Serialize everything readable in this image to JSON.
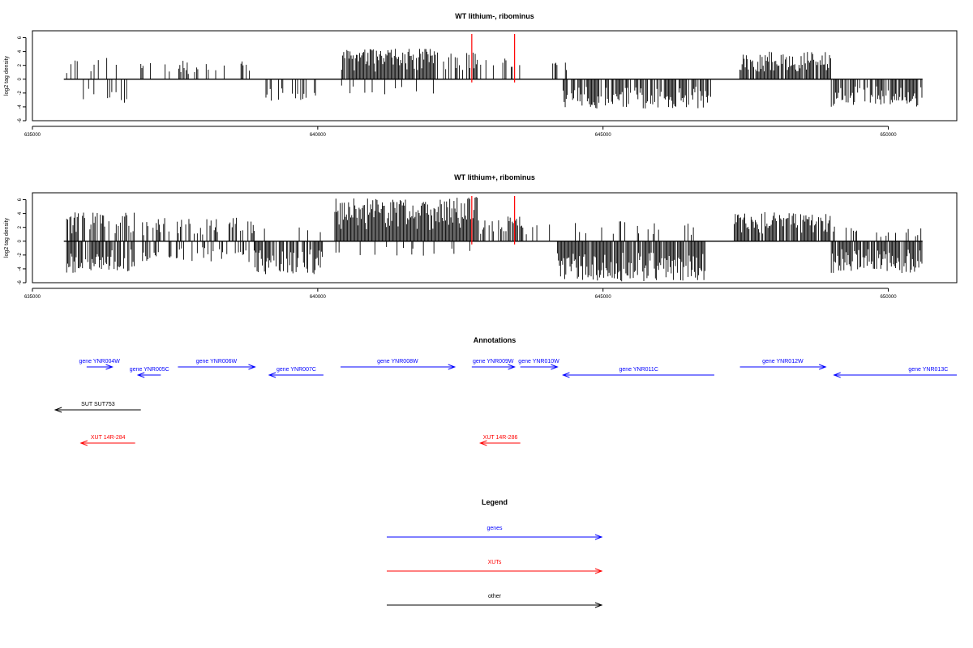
{
  "figure": {
    "panel1_title": "WT lithium-, ribominus",
    "panel2_title": "WT lithium+, ribominus",
    "annotations_title": "Annotations",
    "legend_title": "Legend"
  },
  "chart_data": [
    {
      "type": "bar",
      "title": "WT lithium-, ribominus",
      "xlabel": "",
      "ylabel": "log2 tag density",
      "xlim": [
        635000,
        651200
      ],
      "ylim": [
        -6,
        7
      ],
      "xticks": [
        635000,
        640000,
        645000,
        650000
      ],
      "yticks": [
        6,
        4,
        2,
        0,
        -2,
        -4,
        -6
      ],
      "grid": false,
      "highlight_lines": [
        642700,
        643450
      ],
      "segments": [
        {
          "x": [
            635600,
            636500
          ],
          "dir": "pos",
          "density": 0.25,
          "max": 3.2
        },
        {
          "x": [
            635800,
            636700
          ],
          "dir": "neg",
          "density": 0.35,
          "max": 3.6
        },
        {
          "x": [
            636900,
            638900
          ],
          "dir": "pos",
          "density": 0.25,
          "max": 2.8
        },
        {
          "x": [
            639000,
            640000
          ],
          "dir": "neg",
          "density": 0.25,
          "max": 3.2
        },
        {
          "x": [
            640400,
            642100
          ],
          "dir": "pos",
          "density": 0.95,
          "max": 4.4
        },
        {
          "x": [
            640400,
            642100
          ],
          "dir": "neg",
          "density": 0.12,
          "max": 2.4
        },
        {
          "x": [
            642150,
            642800
          ],
          "dir": "pos",
          "density": 0.5,
          "max": 4.0
        },
        {
          "x": [
            642800,
            643550
          ],
          "dir": "pos",
          "density": 0.25,
          "max": 3.5
        },
        {
          "x": [
            644100,
            644400
          ],
          "dir": "pos",
          "density": 0.2,
          "max": 3.0
        },
        {
          "x": [
            644300,
            646900
          ],
          "dir": "neg",
          "density": 0.75,
          "max": 4.3
        },
        {
          "x": [
            647400,
            649000
          ],
          "dir": "pos",
          "density": 0.9,
          "max": 4.0
        },
        {
          "x": [
            649000,
            650600
          ],
          "dir": "neg",
          "density": 0.75,
          "max": 4.0
        }
      ]
    },
    {
      "type": "bar",
      "title": "WT lithium+, ribominus",
      "xlabel": "",
      "ylabel": "log2 tag density",
      "xlim": [
        635000,
        651200
      ],
      "ylim": [
        -6,
        7
      ],
      "xticks": [
        635000,
        640000,
        645000,
        650000
      ],
      "yticks": [
        6,
        4,
        2,
        0,
        -2,
        -4,
        -6
      ],
      "grid": false,
      "highlight_lines": [
        642700,
        643450
      ],
      "segments": [
        {
          "x": [
            635600,
            636800
          ],
          "dir": "pos",
          "density": 0.6,
          "max": 4.2
        },
        {
          "x": [
            635600,
            636800
          ],
          "dir": "neg",
          "density": 0.75,
          "max": 4.6
        },
        {
          "x": [
            636800,
            638900
          ],
          "dir": "pos",
          "density": 0.45,
          "max": 3.4
        },
        {
          "x": [
            636800,
            638900
          ],
          "dir": "neg",
          "density": 0.35,
          "max": 3.0
        },
        {
          "x": [
            638900,
            640100
          ],
          "dir": "neg",
          "density": 0.8,
          "max": 4.8
        },
        {
          "x": [
            638900,
            640100
          ],
          "dir": "pos",
          "density": 0.15,
          "max": 2.0
        },
        {
          "x": [
            640300,
            642800
          ],
          "dir": "pos",
          "density": 1.0,
          "max": 6.4
        },
        {
          "x": [
            640300,
            642800
          ],
          "dir": "neg",
          "density": 0.1,
          "max": 2.2
        },
        {
          "x": [
            642800,
            643600
          ],
          "dir": "pos",
          "density": 0.55,
          "max": 3.8
        },
        {
          "x": [
            643600,
            644200
          ],
          "dir": "pos",
          "density": 0.2,
          "max": 2.4
        },
        {
          "x": [
            644200,
            646800
          ],
          "dir": "neg",
          "density": 0.9,
          "max": 5.8
        },
        {
          "x": [
            644200,
            646800
          ],
          "dir": "pos",
          "density": 0.15,
          "max": 3.0
        },
        {
          "x": [
            647300,
            649000
          ],
          "dir": "pos",
          "density": 0.9,
          "max": 4.2
        },
        {
          "x": [
            649000,
            650600
          ],
          "dir": "neg",
          "density": 0.9,
          "max": 4.6
        },
        {
          "x": [
            649000,
            650600
          ],
          "dir": "pos",
          "density": 0.15,
          "max": 2.2
        }
      ]
    }
  ],
  "annotations": [
    {
      "label": "gene YNR004W",
      "type": "genes",
      "x1": 635950,
      "x2": 636400,
      "dir": "right",
      "row": 0
    },
    {
      "label": "gene YNR006W",
      "type": "genes",
      "x1": 637550,
      "x2": 638900,
      "dir": "right",
      "row": 0
    },
    {
      "label": "gene YNR005C",
      "type": "genes",
      "x1": 636850,
      "x2": 637250,
      "dir": "left",
      "row": 1
    },
    {
      "label": "gene YNR007C",
      "type": "genes",
      "x1": 639150,
      "x2": 640100,
      "dir": "left",
      "row": 1
    },
    {
      "label": "gene YNR008W",
      "type": "genes",
      "x1": 640400,
      "x2": 642400,
      "dir": "right",
      "row": 0
    },
    {
      "label": "gene YNR009W",
      "type": "genes",
      "x1": 642700,
      "x2": 643450,
      "dir": "right",
      "row": 0
    },
    {
      "label": "gene YNR010W",
      "type": "genes",
      "x1": 643550,
      "x2": 644200,
      "dir": "right",
      "row": 0
    },
    {
      "label": "gene YNR011C",
      "type": "genes",
      "x1": 644300,
      "x2": 646950,
      "dir": "left",
      "row": 1
    },
    {
      "label": "gene YNR012W",
      "type": "genes",
      "x1": 647400,
      "x2": 648900,
      "dir": "right",
      "row": 0
    },
    {
      "label": "gene YNR013C",
      "type": "genes",
      "x1": 649050,
      "x2": 651200,
      "dir": "left",
      "row": 1,
      "label_x": 650700
    },
    {
      "label": "SUT SUT753",
      "type": "other",
      "x1": 635400,
      "x2": 636900,
      "dir": "left",
      "row": 2
    },
    {
      "label": "XUT 14R-284",
      "type": "XUTs",
      "x1": 635850,
      "x2": 636800,
      "dir": "left",
      "row": 3
    },
    {
      "label": "XUT 14R-286",
      "type": "XUTs",
      "x1": 642850,
      "x2": 643550,
      "dir": "left",
      "row": 3
    }
  ],
  "legend": [
    {
      "label": "genes",
      "color": "#0000ff"
    },
    {
      "label": "XUTs",
      "color": "#ff0000"
    },
    {
      "label": "other",
      "color": "#000000"
    }
  ],
  "colors": {
    "genes": "#0000ff",
    "XUTs": "#ff0000",
    "other": "#000000",
    "highlight": "#ff0000",
    "bars": "#000000"
  }
}
